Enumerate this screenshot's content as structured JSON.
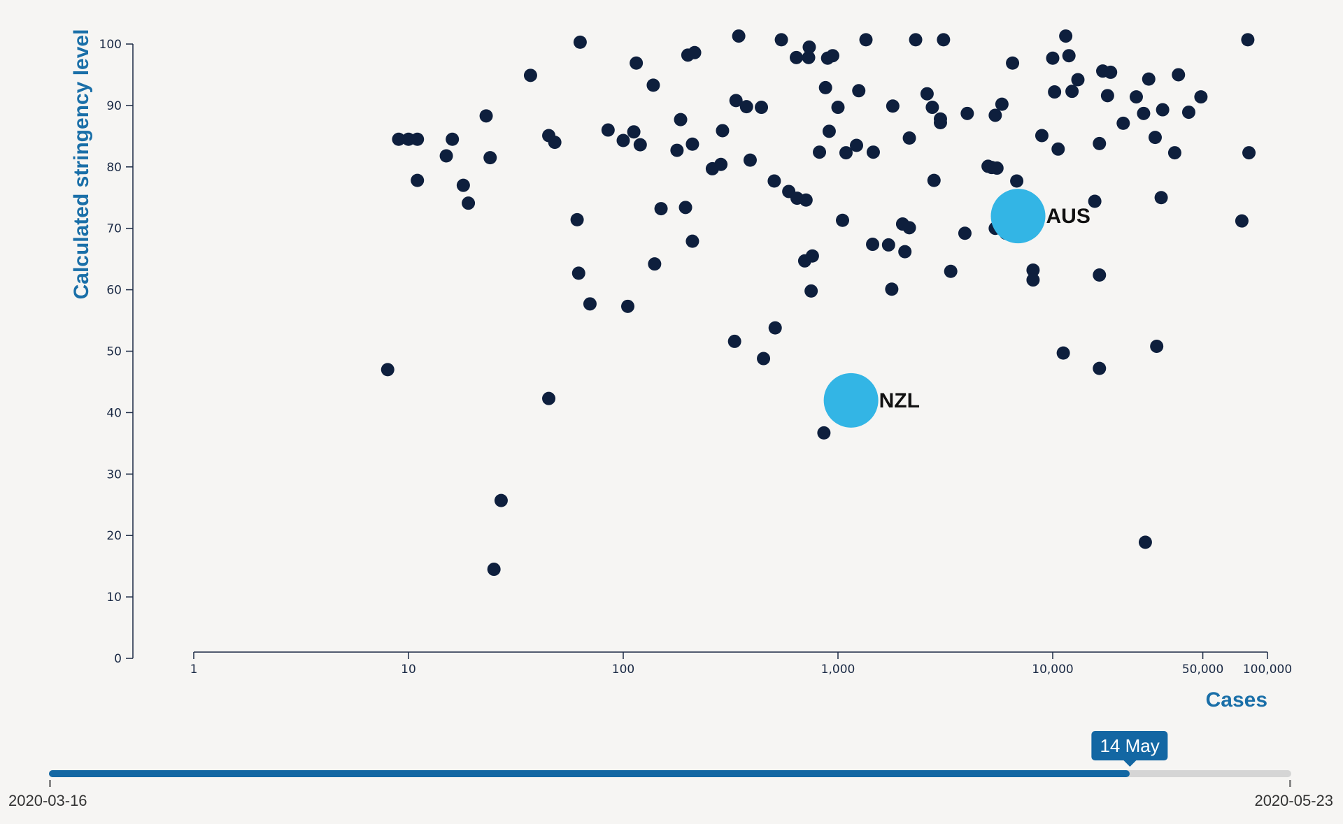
{
  "chart_data": {
    "type": "scatter",
    "xlabel": "Cases",
    "ylabel": "Calculated stringency level",
    "x_scale": "log",
    "xlim": [
      1,
      100000
    ],
    "ylim": [
      0,
      100
    ],
    "x_ticks": [
      1,
      10,
      100,
      1000,
      10000,
      50000,
      100000
    ],
    "x_tick_labels": [
      "1",
      "10",
      "100",
      "1,000",
      "10,000",
      "50,000",
      "100,000"
    ],
    "y_ticks": [
      0,
      10,
      20,
      30,
      40,
      50,
      60,
      70,
      80,
      90,
      100
    ],
    "y_tick_labels": [
      "0",
      "10",
      "20",
      "30",
      "40",
      "50",
      "60",
      "70",
      "80",
      "90",
      "100"
    ],
    "grid": false,
    "colors": {
      "point": "#0e1f3d",
      "highlight": "#33b5e5",
      "axis_title": "#1a6fa8"
    },
    "highlighted": [
      {
        "label": "NZL",
        "x": 1150,
        "y": 42
      },
      {
        "label": "AUS",
        "x": 6900,
        "y": 72
      }
    ],
    "points": [
      [
        8,
        47
      ],
      [
        9,
        84.5
      ],
      [
        10,
        84.5
      ],
      [
        11,
        84.5
      ],
      [
        11,
        77.8
      ],
      [
        15,
        81.8
      ],
      [
        16,
        84.5
      ],
      [
        18,
        77
      ],
      [
        19,
        74.1
      ],
      [
        23,
        88.3
      ],
      [
        24,
        81.5
      ],
      [
        25,
        14.5
      ],
      [
        27,
        25.7
      ],
      [
        37,
        94.9
      ],
      [
        45,
        85.1
      ],
      [
        45,
        42.3
      ],
      [
        48,
        84
      ],
      [
        61,
        71.4
      ],
      [
        62,
        62.7
      ],
      [
        63,
        100.3
      ],
      [
        70,
        57.7
      ],
      [
        85,
        86
      ],
      [
        100,
        84.3
      ],
      [
        105,
        57.3
      ],
      [
        112,
        85.7
      ],
      [
        115,
        96.9
      ],
      [
        120,
        83.6
      ],
      [
        138,
        93.3
      ],
      [
        140,
        64.2
      ],
      [
        150,
        73.2
      ],
      [
        178,
        82.7
      ],
      [
        185,
        87.7
      ],
      [
        195,
        73.4
      ],
      [
        200,
        98.2
      ],
      [
        210,
        83.7
      ],
      [
        210,
        67.9
      ],
      [
        215,
        98.6
      ],
      [
        260,
        79.7
      ],
      [
        285,
        80.4
      ],
      [
        290,
        85.9
      ],
      [
        330,
        51.6
      ],
      [
        335,
        90.8
      ],
      [
        345,
        101.3
      ],
      [
        375,
        89.8
      ],
      [
        390,
        81.1
      ],
      [
        440,
        89.7
      ],
      [
        450,
        48.8
      ],
      [
        505,
        77.7
      ],
      [
        510,
        53.8
      ],
      [
        545,
        100.7
      ],
      [
        590,
        76
      ],
      [
        640,
        97.8
      ],
      [
        645,
        74.9
      ],
      [
        700,
        64.7
      ],
      [
        710,
        74.6
      ],
      [
        730,
        97.8
      ],
      [
        735,
        99.5
      ],
      [
        750,
        59.8
      ],
      [
        760,
        65.5
      ],
      [
        820,
        82.4
      ],
      [
        860,
        36.7
      ],
      [
        875,
        92.9
      ],
      [
        895,
        97.7
      ],
      [
        910,
        85.8
      ],
      [
        945,
        98.1
      ],
      [
        1000,
        89.7
      ],
      [
        1050,
        71.3
      ],
      [
        1090,
        82.3
      ],
      [
        1220,
        83.5
      ],
      [
        1250,
        92.4
      ],
      [
        1350,
        100.7
      ],
      [
        1450,
        67.4
      ],
      [
        1460,
        82.4
      ],
      [
        1720,
        67.3
      ],
      [
        1780,
        60.1
      ],
      [
        1800,
        89.9
      ],
      [
        2000,
        70.7
      ],
      [
        2050,
        66.2
      ],
      [
        2150,
        70.1
      ],
      [
        2150,
        84.7
      ],
      [
        2300,
        100.7
      ],
      [
        2600,
        91.9
      ],
      [
        2750,
        89.7
      ],
      [
        2800,
        77.8
      ],
      [
        3000,
        87.8
      ],
      [
        3000,
        87.2
      ],
      [
        3100,
        100.7
      ],
      [
        3350,
        63
      ],
      [
        3900,
        69.2
      ],
      [
        4000,
        88.7
      ],
      [
        5000,
        80.1
      ],
      [
        5200,
        79.9
      ],
      [
        5400,
        88.4
      ],
      [
        5400,
        70
      ],
      [
        5500,
        79.8
      ],
      [
        5800,
        90.2
      ],
      [
        6050,
        69.2
      ],
      [
        6500,
        96.9
      ],
      [
        6800,
        77.7
      ],
      [
        8100,
        63.2
      ],
      [
        8100,
        61.6
      ],
      [
        8900,
        85.1
      ],
      [
        10000,
        97.7
      ],
      [
        10200,
        92.2
      ],
      [
        10600,
        82.9
      ],
      [
        11200,
        49.7
      ],
      [
        11500,
        101.3
      ],
      [
        11900,
        98.1
      ],
      [
        12300,
        92.3
      ],
      [
        13100,
        94.2
      ],
      [
        15700,
        74.4
      ],
      [
        16500,
        62.4
      ],
      [
        16500,
        47.2
      ],
      [
        16500,
        83.8
      ],
      [
        17100,
        95.6
      ],
      [
        18000,
        91.6
      ],
      [
        18600,
        95.4
      ],
      [
        21300,
        87.1
      ],
      [
        24500,
        91.4
      ],
      [
        26500,
        88.7
      ],
      [
        27000,
        18.9
      ],
      [
        28000,
        94.3
      ],
      [
        30000,
        84.8
      ],
      [
        30500,
        50.8
      ],
      [
        32000,
        75
      ],
      [
        32500,
        89.3
      ],
      [
        37000,
        82.3
      ],
      [
        38500,
        95
      ],
      [
        43000,
        88.9
      ],
      [
        49000,
        91.4
      ],
      [
        76000,
        71.2
      ],
      [
        81000,
        100.7
      ],
      [
        82000,
        82.3
      ]
    ]
  },
  "slider": {
    "current_label": "14 May",
    "start_date": "2020-03-16",
    "end_date": "2020-05-23",
    "progress": 0.87
  }
}
